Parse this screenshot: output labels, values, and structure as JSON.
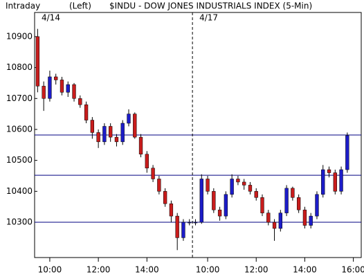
{
  "chart_data": {
    "type": "candlestick",
    "title": "$INDU - DOW JONES INDUSTRIALS INDEX (5-Min)",
    "period": "Intraday",
    "axis_side": "(Left)",
    "sessions": [
      {
        "label": "4/14",
        "start": -0.5
      },
      {
        "label": "4/17",
        "start": 25.5
      }
    ],
    "x": [
      0,
      1,
      2,
      3,
      4,
      5,
      6,
      7,
      8,
      9,
      10,
      11,
      12,
      13,
      14,
      15,
      16,
      17,
      18,
      19,
      20,
      21,
      22,
      23,
      24,
      25,
      26,
      27,
      28,
      29,
      30,
      31,
      32,
      33,
      34,
      35,
      36,
      37,
      38,
      39,
      40,
      41,
      42,
      43,
      44,
      45,
      46,
      47,
      48,
      49,
      50,
      51
    ],
    "open": [
      10900,
      10740,
      10700,
      10770,
      10760,
      10720,
      10745,
      10700,
      10680,
      10630,
      10590,
      10560,
      10610,
      10575,
      10560,
      10620,
      10650,
      10575,
      10520,
      10475,
      10440,
      10400,
      10360,
      10320,
      10250,
      10300,
      10300,
      10300,
      10440,
      10400,
      10340,
      10320,
      10390,
      10440,
      10430,
      10420,
      10400,
      10380,
      10330,
      10300,
      10280,
      10330,
      10410,
      10380,
      10340,
      10290,
      10320,
      10390,
      10470,
      10460,
      10400,
      10470
    ],
    "high": [
      10925,
      10755,
      10790,
      10780,
      10770,
      10755,
      10750,
      10710,
      10690,
      10640,
      10600,
      10620,
      10620,
      10585,
      10630,
      10665,
      10655,
      10585,
      10530,
      10485,
      10450,
      10410,
      10370,
      10330,
      10310,
      10310,
      10310,
      10455,
      10450,
      10410,
      10350,
      10400,
      10455,
      10450,
      10440,
      10430,
      10410,
      10390,
      10340,
      10310,
      10340,
      10420,
      10415,
      10390,
      10350,
      10330,
      10400,
      10485,
      10480,
      10470,
      10480,
      10590
    ],
    "low": [
      10720,
      10660,
      10690,
      10745,
      10710,
      10705,
      10690,
      10670,
      10620,
      10570,
      10540,
      10550,
      10560,
      10545,
      10550,
      10610,
      10570,
      10510,
      10460,
      10430,
      10390,
      10350,
      10300,
      10210,
      10240,
      10290,
      10290,
      10295,
      10390,
      10330,
      10305,
      10310,
      10380,
      10420,
      10405,
      10390,
      10370,
      10320,
      10290,
      10240,
      10270,
      10320,
      10370,
      10330,
      10280,
      10280,
      10310,
      10380,
      10445,
      10390,
      10390,
      10460
    ],
    "close": [
      10740,
      10700,
      10770,
      10760,
      10720,
      10745,
      10700,
      10680,
      10630,
      10590,
      10560,
      10610,
      10575,
      10560,
      10620,
      10650,
      10575,
      10520,
      10475,
      10440,
      10400,
      10360,
      10320,
      10250,
      10300,
      10300,
      10300,
      10440,
      10400,
      10340,
      10320,
      10390,
      10440,
      10430,
      10420,
      10400,
      10380,
      10330,
      10300,
      10280,
      10330,
      10410,
      10380,
      10340,
      10290,
      10320,
      10390,
      10470,
      10460,
      10400,
      10470,
      10580
    ],
    "up_color": "#1c1cc8",
    "down_color": "#c81c1c",
    "line_color": "#000080",
    "hlines": [
      10582,
      10452,
      10300
    ],
    "xlim": [
      -0.5,
      52.5
    ],
    "xticks": [
      {
        "value": 2,
        "label": "10:00"
      },
      {
        "value": 10,
        "label": "12:00"
      },
      {
        "value": 18,
        "label": "14:00"
      },
      {
        "value": 28,
        "label": "10:00"
      },
      {
        "value": 36,
        "label": "12:00"
      },
      {
        "value": 44,
        "label": "14:00"
      },
      {
        "value": 52,
        "label": "16:00"
      }
    ],
    "ylim": [
      10186,
      10978
    ],
    "yticks": [
      10300,
      10400,
      10500,
      10600,
      10700,
      10800,
      10900
    ]
  }
}
